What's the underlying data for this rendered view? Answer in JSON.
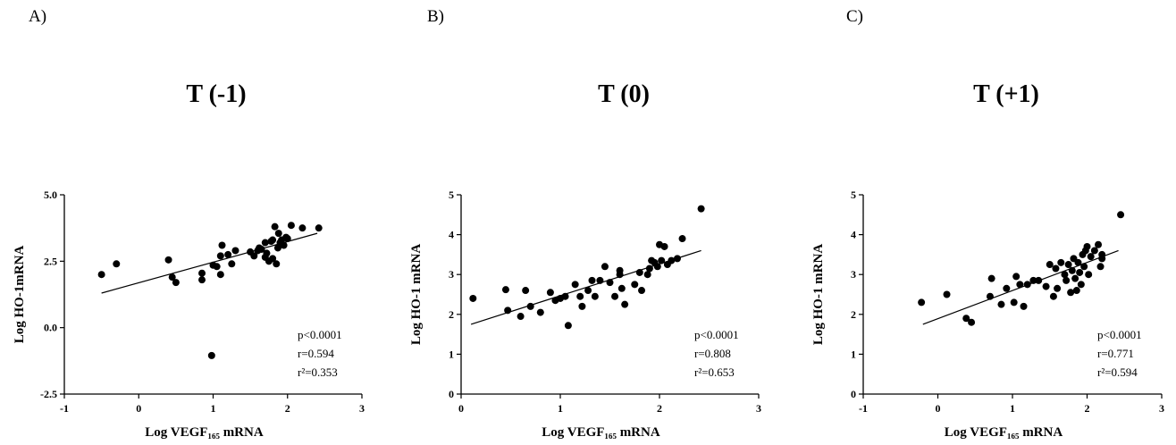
{
  "chart_data": [
    {
      "type": "scatter",
      "panel_label": "A)",
      "title": "T (-1)",
      "xlabel": "Log VEGF₁₆₅ mRNA",
      "ylabel": "Log HO-1mRNA",
      "xlim": [
        -1,
        3
      ],
      "ylim": [
        -2.5,
        5.0
      ],
      "x_ticks": [
        "-1",
        "0",
        "1",
        "2",
        "3"
      ],
      "y_ticks": [
        "-2.5",
        "0.0",
        "2.5",
        "5.0"
      ],
      "regression_line": {
        "x": [
          -0.5,
          2.4
        ],
        "y": [
          1.3,
          3.55
        ]
      },
      "stats": [
        "p<0.0001",
        "r=0.594",
        "r²=0.353"
      ],
      "points": [
        [
          -0.5,
          2.0
        ],
        [
          -0.3,
          2.4
        ],
        [
          0.4,
          2.55
        ],
        [
          0.45,
          1.9
        ],
        [
          0.5,
          1.7
        ],
        [
          0.85,
          1.8
        ],
        [
          0.85,
          2.05
        ],
        [
          1.0,
          2.35
        ],
        [
          1.05,
          2.3
        ],
        [
          1.1,
          2.0
        ],
        [
          1.1,
          2.7
        ],
        [
          1.12,
          3.1
        ],
        [
          1.2,
          2.75
        ],
        [
          1.25,
          2.4
        ],
        [
          1.3,
          2.9
        ],
        [
          1.5,
          2.85
        ],
        [
          1.55,
          2.7
        ],
        [
          1.6,
          2.9
        ],
        [
          1.62,
          3.0
        ],
        [
          1.65,
          2.95
        ],
        [
          1.7,
          3.2
        ],
        [
          1.7,
          2.65
        ],
        [
          1.72,
          2.8
        ],
        [
          1.75,
          2.5
        ],
        [
          1.78,
          3.25
        ],
        [
          1.8,
          3.3
        ],
        [
          1.8,
          2.6
        ],
        [
          1.83,
          3.8
        ],
        [
          1.85,
          2.4
        ],
        [
          1.87,
          3.0
        ],
        [
          1.88,
          3.55
        ],
        [
          1.9,
          3.2
        ],
        [
          1.92,
          3.3
        ],
        [
          1.95,
          3.1
        ],
        [
          1.98,
          3.4
        ],
        [
          2.0,
          3.35
        ],
        [
          2.05,
          3.85
        ],
        [
          2.2,
          3.75
        ],
        [
          2.42,
          3.75
        ],
        [
          0.98,
          -1.05
        ]
      ]
    },
    {
      "type": "scatter",
      "panel_label": "B)",
      "title": "T (0)",
      "xlabel": "Log VEGF₁₆₅ mRNA",
      "ylabel": "Log HO-1 mRNA",
      "xlim": [
        0,
        3
      ],
      "ylim": [
        0,
        5
      ],
      "x_ticks": [
        "0",
        "1",
        "2",
        "3"
      ],
      "y_ticks": [
        "0",
        "1",
        "2",
        "3",
        "4",
        "5"
      ],
      "regression_line": {
        "x": [
          0.1,
          2.42
        ],
        "y": [
          1.75,
          3.6
        ]
      },
      "stats": [
        "p<0.0001",
        "r=0.808",
        "r²=0.653"
      ],
      "points": [
        [
          0.12,
          2.4
        ],
        [
          0.45,
          2.62
        ],
        [
          0.47,
          2.1
        ],
        [
          0.6,
          1.95
        ],
        [
          0.65,
          2.6
        ],
        [
          0.7,
          2.2
        ],
        [
          0.8,
          2.05
        ],
        [
          0.9,
          2.55
        ],
        [
          0.95,
          2.35
        ],
        [
          1.0,
          2.4
        ],
        [
          1.05,
          2.45
        ],
        [
          1.08,
          1.72
        ],
        [
          1.15,
          2.75
        ],
        [
          1.2,
          2.45
        ],
        [
          1.22,
          2.2
        ],
        [
          1.28,
          2.6
        ],
        [
          1.32,
          2.85
        ],
        [
          1.35,
          2.45
        ],
        [
          1.4,
          2.85
        ],
        [
          1.45,
          3.2
        ],
        [
          1.5,
          2.8
        ],
        [
          1.55,
          2.45
        ],
        [
          1.6,
          3.0
        ],
        [
          1.6,
          3.1
        ],
        [
          1.62,
          2.65
        ],
        [
          1.65,
          2.25
        ],
        [
          1.75,
          2.75
        ],
        [
          1.8,
          3.05
        ],
        [
          1.82,
          2.6
        ],
        [
          1.88,
          3.0
        ],
        [
          1.9,
          3.15
        ],
        [
          1.92,
          3.35
        ],
        [
          1.95,
          3.3
        ],
        [
          1.98,
          3.2
        ],
        [
          2.0,
          3.75
        ],
        [
          2.02,
          3.35
        ],
        [
          2.05,
          3.7
        ],
        [
          2.08,
          3.25
        ],
        [
          2.12,
          3.35
        ],
        [
          2.18,
          3.4
        ],
        [
          2.23,
          3.9
        ],
        [
          2.42,
          4.65
        ]
      ]
    },
    {
      "type": "scatter",
      "panel_label": "C)",
      "title": "T (+1)",
      "xlabel": "Log VEGF₁₆₅ mRNA",
      "ylabel": "Log HO-1 mRNA",
      "xlim": [
        -1,
        3
      ],
      "ylim": [
        0,
        5
      ],
      "x_ticks": [
        "-1",
        "0",
        "1",
        "2",
        "3"
      ],
      "y_ticks": [
        "0",
        "1",
        "2",
        "3",
        "4",
        "5"
      ],
      "regression_line": {
        "x": [
          -0.2,
          2.42
        ],
        "y": [
          1.75,
          3.6
        ]
      },
      "stats": [
        "p<0.0001",
        "r=0.771",
        "r²=0.594"
      ],
      "points": [
        [
          -0.22,
          2.3
        ],
        [
          0.12,
          2.5
        ],
        [
          0.38,
          1.9
        ],
        [
          0.45,
          1.8
        ],
        [
          0.7,
          2.45
        ],
        [
          0.72,
          2.9
        ],
        [
          0.85,
          2.25
        ],
        [
          0.92,
          2.65
        ],
        [
          1.02,
          2.3
        ],
        [
          1.05,
          2.95
        ],
        [
          1.1,
          2.75
        ],
        [
          1.15,
          2.2
        ],
        [
          1.2,
          2.75
        ],
        [
          1.28,
          2.85
        ],
        [
          1.35,
          2.85
        ],
        [
          1.45,
          2.7
        ],
        [
          1.5,
          3.25
        ],
        [
          1.55,
          2.45
        ],
        [
          1.58,
          3.15
        ],
        [
          1.6,
          2.65
        ],
        [
          1.65,
          3.3
        ],
        [
          1.7,
          3.0
        ],
        [
          1.72,
          2.85
        ],
        [
          1.75,
          3.25
        ],
        [
          1.78,
          2.55
        ],
        [
          1.8,
          3.1
        ],
        [
          1.82,
          3.4
        ],
        [
          1.84,
          2.9
        ],
        [
          1.86,
          2.6
        ],
        [
          1.88,
          3.3
        ],
        [
          1.9,
          3.05
        ],
        [
          1.92,
          2.75
        ],
        [
          1.94,
          3.5
        ],
        [
          1.96,
          3.2
        ],
        [
          1.98,
          3.6
        ],
        [
          2.0,
          3.7
        ],
        [
          2.02,
          3.0
        ],
        [
          2.05,
          3.45
        ],
        [
          2.1,
          3.6
        ],
        [
          2.15,
          3.75
        ],
        [
          2.18,
          3.2
        ],
        [
          2.2,
          3.5
        ],
        [
          2.2,
          3.4
        ],
        [
          2.45,
          4.5
        ]
      ]
    }
  ]
}
